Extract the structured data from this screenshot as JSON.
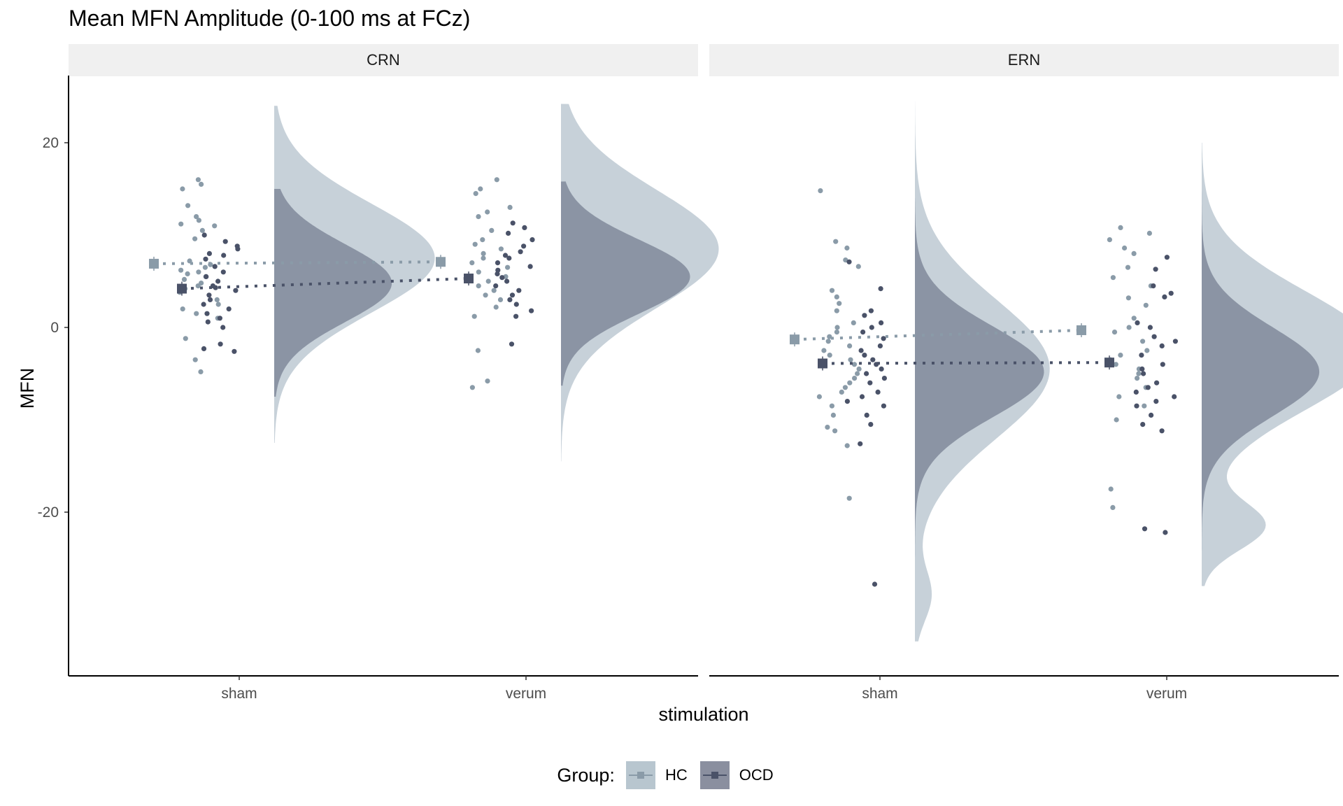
{
  "title": "Mean MFN Amplitude (0-100 ms at FCz)",
  "legend": {
    "title": "Group:",
    "items": [
      {
        "label": "HC",
        "color": "#8a9ba8",
        "fill": "#b8c6cf"
      },
      {
        "label": "OCD",
        "color": "#4a5268",
        "fill": "#8a8f9f"
      }
    ]
  },
  "chart_data": {
    "type": "scatter",
    "subtype": "raincloud",
    "facets": [
      "CRN",
      "ERN"
    ],
    "xlabel": "stimulation",
    "ylabel": "MFN",
    "categories": [
      "sham",
      "verum"
    ],
    "y_ticks": [
      20,
      0,
      -20
    ],
    "y_tick_labels": [
      "20",
      "0",
      "-20"
    ],
    "ylim": [
      -37.5,
      27
    ],
    "grid": false,
    "legend_position": "bottom",
    "series": [
      {
        "name": "HC",
        "color": "#8a9ba8",
        "means": {
          "CRN": {
            "sham": 6.9,
            "verum": 7.1
          },
          "ERN": {
            "sham": -1.3,
            "verum": -0.3
          }
        },
        "density": {
          "CRN": {
            "sham": {
              "peak": 7.5,
              "sd": 5.9,
              "min": -12.5,
              "max": 24,
              "peak_width_frac": 0.56
            },
            "verum": {
              "peak": 8.5,
              "sd": 6.4,
              "min": -14.5,
              "max": 24.2,
              "peak_width_frac": 0.55
            }
          },
          "ERN": {
            "sham": {
              "peak": -4.5,
              "sd": 7.5,
              "min": -34,
              "max": 24.5,
              "peak_width_frac": 0.47,
              "tail_center": -29,
              "tail_sd": 2.8,
              "tail_amp": 0.02
            },
            "verum": {
              "peak": -2.5,
              "sd": 6.4,
              "min": -28,
              "max": 20,
              "peak_width_frac": 0.6,
              "tail_center": -21.5,
              "tail_sd": 2.6,
              "tail_amp": 0.06
            }
          }
        },
        "points": {
          "CRN": {
            "sham": [
              16,
              15.5,
              15,
              13.2,
              12,
              11.6,
              11.2,
              11,
              10.5,
              9.6,
              7.2,
              6.8,
              6.5,
              6.2,
              6,
              5.8,
              5.5,
              5.2,
              4.8,
              4.5,
              4.2,
              3.8,
              3,
              2.5,
              2,
              1.5,
              1,
              -1.2,
              -3.5,
              -4.8
            ],
            "verum": [
              16,
              15,
              14.5,
              13,
              12.5,
              12,
              10.5,
              9.5,
              9,
              8.5,
              8,
              7.5,
              7,
              6.5,
              6,
              5.5,
              5,
              4.5,
              4,
              3.5,
              3,
              2.2,
              1.2,
              -2.5,
              -5.8,
              -6.5
            ]
          },
          "ERN": {
            "sham": [
              14.8,
              9.3,
              8.6,
              7.3,
              6.6,
              4,
              3.3,
              2.6,
              1.8,
              0.5,
              0,
              -0.5,
              -1,
              -1.5,
              -2,
              -2.5,
              -3,
              -3.5,
              -4,
              -4.5,
              -5,
              -5.5,
              -6,
              -6.5,
              -7,
              -7.5,
              -8.5,
              -9.5,
              -10.8,
              -11.2,
              -12.8,
              -18.5
            ],
            "verum": [
              10.8,
              10.2,
              9.5,
              8.6,
              8,
              6.5,
              5.4,
              4.5,
              3.2,
              2.4,
              1,
              0,
              -0.5,
              -1.5,
              -2.5,
              -3,
              -3.5,
              -4,
              -4.5,
              -5,
              -5.5,
              -6.5,
              -7.5,
              -8.5,
              -10,
              -17.5,
              -19.5
            ]
          }
        }
      },
      {
        "name": "OCD",
        "color": "#4a5268",
        "means": {
          "CRN": {
            "sham": 4.2,
            "verum": 5.3
          },
          "ERN": {
            "sham": -3.9,
            "verum": -3.8
          }
        },
        "density": {
          "CRN": {
            "sham": {
              "peak": 4.8,
              "sd": 4.2,
              "min": -7.5,
              "max": 15,
              "peak_width_frac": 0.41
            },
            "verum": {
              "peak": 5.5,
              "sd": 4.0,
              "min": -6.3,
              "max": 15.8,
              "peak_width_frac": 0.45
            }
          },
          "ERN": {
            "sham": {
              "peak": -4.8,
              "sd": 4.9,
              "min": -28,
              "max": 14,
              "peak_width_frac": 0.45
            },
            "verum": {
              "peak": -4.8,
              "sd": 4.8,
              "min": -29.5,
              "max": 14.8,
              "peak_width_frac": 0.41
            }
          }
        },
        "points": {
          "CRN": {
            "sham": [
              10,
              9.3,
              8.8,
              8.5,
              8,
              7.8,
              7.4,
              6.6,
              6,
              5.5,
              5,
              4.5,
              4.3,
              4,
              3.5,
              3,
              2.5,
              2,
              1.5,
              1,
              0.6,
              0,
              -1.8,
              -2.3,
              -2.6
            ],
            "verum": [
              11.3,
              10.8,
              10.2,
              9.5,
              8.8,
              8.2,
              7.8,
              7.5,
              7,
              6.6,
              6.2,
              5.8,
              5.4,
              5,
              4.5,
              4,
              3.5,
              3,
              2.5,
              1.8,
              1.2,
              -1.8
            ]
          },
          "ERN": {
            "sham": [
              7.1,
              4.2,
              1.8,
              1.3,
              0.5,
              0,
              -0.5,
              -1.2,
              -2,
              -2.5,
              -3,
              -3.5,
              -4,
              -4.5,
              -5,
              -5.5,
              -6,
              -7,
              -7.5,
              -8,
              -8.5,
              -9.5,
              -10.5,
              -12.6,
              -27.8
            ],
            "verum": [
              7.6,
              6.3,
              4.5,
              3.7,
              3.3,
              0.5,
              0,
              -1,
              -1.5,
              -2,
              -3,
              -4,
              -4.5,
              -5,
              -6,
              -6.5,
              -7,
              -7.5,
              -8,
              -8.5,
              -9.5,
              -10.5,
              -11.2,
              -21.8,
              -22.2
            ]
          }
        }
      }
    ]
  }
}
